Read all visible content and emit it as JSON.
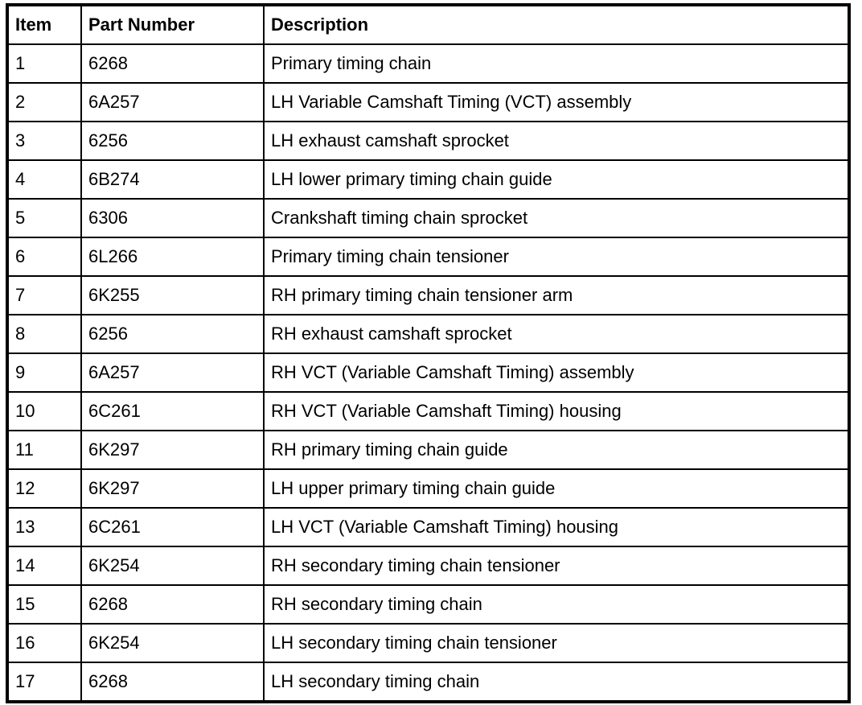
{
  "headers": [
    "Item",
    "Part Number",
    "Description"
  ],
  "rows": [
    [
      "1",
      "6268",
      "Primary timing chain"
    ],
    [
      "2",
      "6A257",
      "LH Variable Camshaft Timing (VCT) assembly"
    ],
    [
      "3",
      "6256",
      "LH exhaust camshaft sprocket"
    ],
    [
      "4",
      "6B274",
      "LH lower primary timing chain guide"
    ],
    [
      "5",
      "6306",
      "Crankshaft timing chain sprocket"
    ],
    [
      "6",
      "6L266",
      "Primary timing chain tensioner"
    ],
    [
      "7",
      "6K255",
      "RH primary timing chain tensioner arm"
    ],
    [
      "8",
      "6256",
      "RH exhaust camshaft sprocket"
    ],
    [
      "9",
      "6A257",
      "RH VCT (Variable Camshaft Timing) assembly"
    ],
    [
      "10",
      "6C261",
      "RH VCT (Variable Camshaft Timing) housing"
    ],
    [
      "11",
      "6K297",
      "RH primary timing chain guide"
    ],
    [
      "12",
      "6K297",
      "LH upper primary timing chain guide"
    ],
    [
      "13",
      "6C261",
      "LH VCT (Variable Camshaft Timing) housing"
    ],
    [
      "14",
      "6K254",
      "RH secondary timing chain tensioner"
    ],
    [
      "15",
      "6268",
      "RH secondary timing chain"
    ],
    [
      "16",
      "6K254",
      "LH secondary timing chain tensioner"
    ],
    [
      "17",
      "6268",
      "LH secondary timing chain"
    ]
  ]
}
